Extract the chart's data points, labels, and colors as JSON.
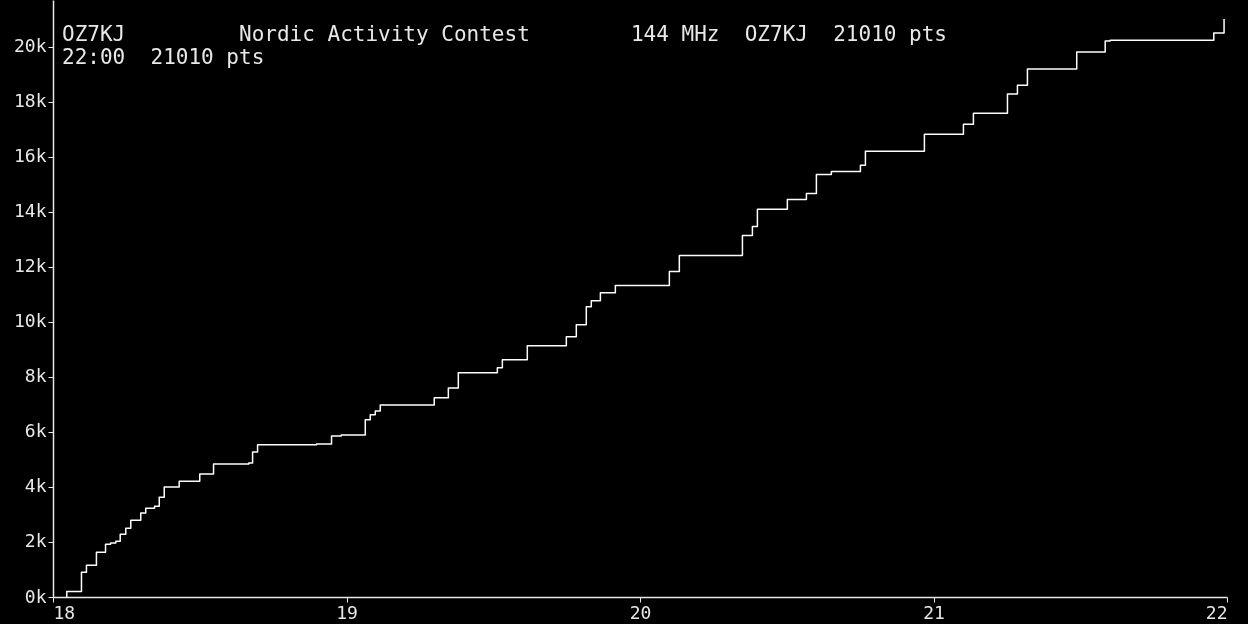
{
  "chart_data": {
    "type": "step",
    "title": "OZ7KJ         Nordic Activity Contest        144 MHz  OZ7KJ  21010 pts",
    "subtitle": "22:00  21010 pts",
    "xlim": [
      18,
      22
    ],
    "xticks": [
      18,
      19,
      20,
      21,
      22
    ],
    "ylim": [
      0,
      21700
    ],
    "yticks": [
      {
        "value": 0,
        "label": "0k"
      },
      {
        "value": 2000,
        "label": "2k"
      },
      {
        "value": 4000,
        "label": "4k"
      },
      {
        "value": 6000,
        "label": "6k"
      },
      {
        "value": 8000,
        "label": "8k"
      },
      {
        "value": 10000,
        "label": "10k"
      },
      {
        "value": 12000,
        "label": "12k"
      },
      {
        "value": 14000,
        "label": "14k"
      },
      {
        "value": 16000,
        "label": "16k"
      },
      {
        "value": 18000,
        "label": "18k"
      },
      {
        "value": 20000,
        "label": "20k"
      }
    ],
    "grid": false,
    "series": [
      {
        "color": "#ffffff",
        "x": [
          18.047,
          18.047,
          18.097,
          18.114,
          18.148,
          18.179,
          18.196,
          18.214,
          18.229,
          18.248,
          18.265,
          18.299,
          18.316,
          18.346,
          18.362,
          18.379,
          18.43,
          18.5,
          18.547,
          18.667,
          18.68,
          18.697,
          18.898,
          18.949,
          18.982,
          19.064,
          19.081,
          19.098,
          19.115,
          19.299,
          19.347,
          19.381,
          19.514,
          19.531,
          19.616,
          19.749,
          19.783,
          19.817,
          19.834,
          19.865,
          19.916,
          20.1,
          20.134,
          20.349,
          20.383,
          20.4,
          20.502,
          20.567,
          20.601,
          20.652,
          20.751,
          20.768,
          20.969,
          21.102,
          21.136,
          21.252,
          21.286,
          21.32,
          21.488,
          21.585,
          21.602,
          21.955,
          21.99
        ],
        "values": [
          0,
          200,
          900,
          1150,
          1630,
          1920,
          1960,
          2030,
          2280,
          2500,
          2790,
          3050,
          3230,
          3300,
          3630,
          4000,
          4210,
          4470,
          4830,
          4870,
          5270,
          5530,
          5560,
          5850,
          5890,
          6440,
          6620,
          6760,
          6980,
          7240,
          7600,
          8150,
          8330,
          8620,
          9130,
          9460,
          9900,
          10550,
          10770,
          11060,
          11320,
          11830,
          12410,
          13140,
          13470,
          14090,
          14450,
          14670,
          15360,
          15470,
          15690,
          16200,
          16820,
          17180,
          17580,
          18280,
          18600,
          19190,
          19810,
          20210,
          20240,
          20500,
          21010
        ]
      }
    ]
  }
}
